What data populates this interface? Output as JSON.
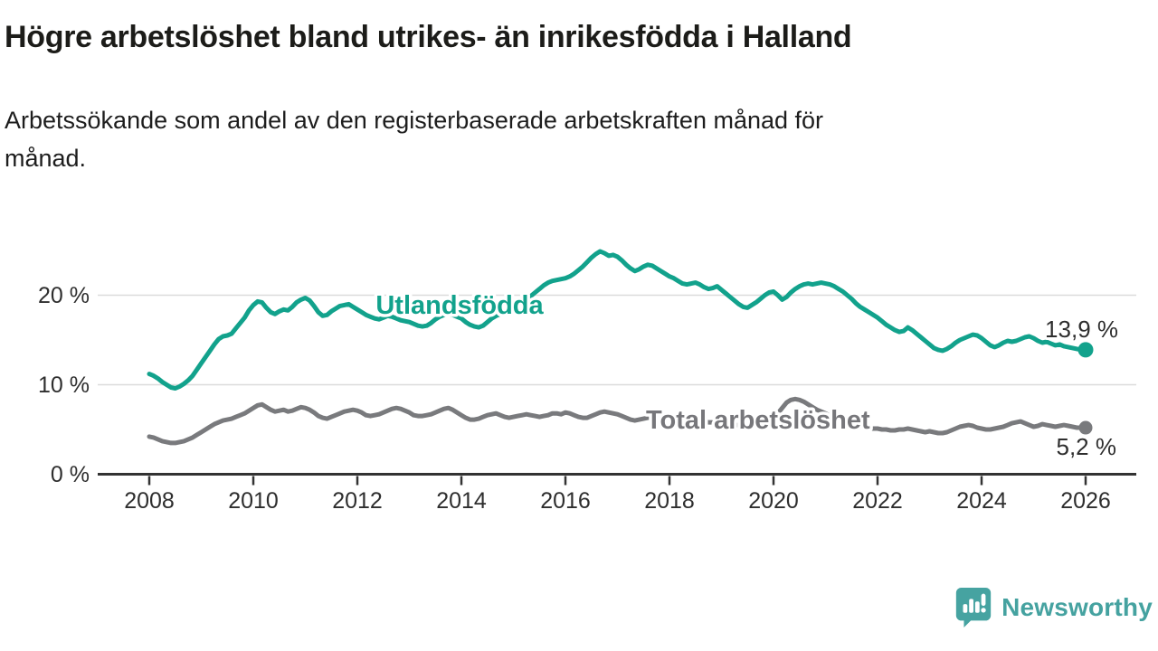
{
  "branding": {
    "name": "Newsworthy",
    "icon": "newsworthy-speech-bubble-chart-icon",
    "color": "#46a3a1"
  },
  "chart_data": {
    "type": "line",
    "title": "Högre arbetslöshet bland utrikes- än inrikesfödda i Halland",
    "subtitle": "Arbetssökande som andel av den registerbaserade arbetskraften månad för\nmånad.",
    "unit": "%",
    "x_range": [
      2008,
      2026
    ],
    "x_step_months": 1,
    "ylim": [
      0,
      26.5
    ],
    "grid": "horizontal",
    "grid_values": [
      10,
      20
    ],
    "x_ticks": [
      2008,
      2010,
      2012,
      2014,
      2016,
      2018,
      2020,
      2022,
      2024,
      2026
    ],
    "y_ticks": [
      {
        "value": 20,
        "label": "20 %"
      },
      {
        "value": 10,
        "label": "10 %"
      },
      {
        "value": 0,
        "label": "0 %"
      }
    ],
    "series": [
      {
        "name": "Utlandsfödda",
        "color": "#12a28c",
        "end_value": 13.9,
        "end_label": "13,9 %",
        "start_year": 2008,
        "values": [
          11.2,
          11.0,
          10.7,
          10.3,
          10.0,
          9.7,
          9.6,
          9.8,
          10.1,
          10.5,
          11.0,
          11.7,
          12.4,
          13.1,
          13.8,
          14.5,
          15.1,
          15.4,
          15.5,
          15.7,
          16.3,
          16.9,
          17.5,
          18.3,
          18.9,
          19.3,
          19.2,
          18.6,
          18.1,
          17.9,
          18.2,
          18.4,
          18.3,
          18.7,
          19.2,
          19.5,
          19.7,
          19.4,
          18.8,
          18.1,
          17.7,
          17.8,
          18.2,
          18.5,
          18.8,
          18.9,
          19.0,
          18.7,
          18.4,
          18.1,
          17.8,
          17.6,
          17.4,
          17.3,
          17.5,
          17.7,
          17.6,
          17.4,
          17.2,
          17.1,
          17.0,
          16.8,
          16.6,
          16.5,
          16.6,
          16.9,
          17.3,
          17.6,
          17.8,
          17.9,
          17.8,
          17.6,
          17.4,
          17.0,
          16.7,
          16.5,
          16.4,
          16.6,
          17.0,
          17.4,
          17.7,
          17.9,
          18.1,
          18.4,
          18.7,
          19.0,
          19.3,
          19.6,
          19.9,
          20.3,
          20.7,
          21.1,
          21.4,
          21.6,
          21.7,
          21.8,
          21.9,
          22.1,
          22.4,
          22.8,
          23.2,
          23.7,
          24.2,
          24.6,
          24.9,
          24.7,
          24.4,
          24.5,
          24.3,
          23.9,
          23.4,
          23.0,
          22.7,
          22.9,
          23.2,
          23.4,
          23.3,
          23.0,
          22.7,
          22.4,
          22.1,
          21.9,
          21.6,
          21.3,
          21.2,
          21.3,
          21.4,
          21.2,
          20.9,
          20.7,
          20.8,
          21.0,
          20.6,
          20.2,
          19.8,
          19.4,
          19.0,
          18.7,
          18.6,
          18.9,
          19.2,
          19.6,
          20.0,
          20.3,
          20.4,
          20.0,
          19.5,
          19.8,
          20.3,
          20.7,
          21.0,
          21.2,
          21.3,
          21.2,
          21.3,
          21.4,
          21.3,
          21.2,
          21.0,
          20.7,
          20.4,
          20.0,
          19.6,
          19.1,
          18.7,
          18.4,
          18.1,
          17.8,
          17.5,
          17.1,
          16.7,
          16.4,
          16.1,
          15.9,
          16.0,
          16.4,
          16.1,
          15.7,
          15.3,
          14.9,
          14.5,
          14.1,
          13.9,
          13.8,
          14.0,
          14.3,
          14.7,
          15.0,
          15.2,
          15.4,
          15.6,
          15.5,
          15.2,
          14.8,
          14.4,
          14.2,
          14.4,
          14.7,
          14.9,
          14.8,
          14.9,
          15.1,
          15.3,
          15.4,
          15.2,
          14.9,
          14.7,
          14.8,
          14.6,
          14.4,
          14.5,
          14.3,
          14.2,
          14.1,
          14.0,
          13.9,
          13.9
        ]
      },
      {
        "name": "Total arbetslöshet",
        "color": "#797a7d",
        "end_value": 5.2,
        "end_label": "5,2 %",
        "start_year": 2008,
        "values": [
          4.2,
          4.1,
          3.9,
          3.7,
          3.6,
          3.5,
          3.5,
          3.6,
          3.7,
          3.9,
          4.1,
          4.4,
          4.7,
          5.0,
          5.3,
          5.6,
          5.8,
          6.0,
          6.1,
          6.2,
          6.4,
          6.6,
          6.8,
          7.1,
          7.4,
          7.7,
          7.8,
          7.5,
          7.2,
          7.0,
          7.1,
          7.2,
          7.0,
          7.1,
          7.3,
          7.5,
          7.4,
          7.2,
          6.9,
          6.5,
          6.3,
          6.2,
          6.4,
          6.6,
          6.8,
          7.0,
          7.1,
          7.2,
          7.1,
          6.9,
          6.6,
          6.5,
          6.6,
          6.7,
          6.9,
          7.1,
          7.3,
          7.4,
          7.3,
          7.1,
          6.9,
          6.6,
          6.5,
          6.5,
          6.6,
          6.7,
          6.9,
          7.1,
          7.3,
          7.4,
          7.2,
          6.9,
          6.6,
          6.3,
          6.1,
          6.1,
          6.2,
          6.4,
          6.6,
          6.7,
          6.8,
          6.6,
          6.4,
          6.3,
          6.4,
          6.5,
          6.6,
          6.7,
          6.6,
          6.5,
          6.4,
          6.5,
          6.6,
          6.8,
          6.8,
          6.7,
          6.9,
          6.8,
          6.6,
          6.4,
          6.3,
          6.3,
          6.5,
          6.7,
          6.9,
          7.0,
          6.9,
          6.8,
          6.7,
          6.5,
          6.3,
          6.1,
          6.0,
          6.1,
          6.2,
          6.3,
          6.4,
          6.5,
          6.5,
          6.4,
          6.2,
          6.0,
          5.9,
          5.8,
          5.7,
          5.7,
          5.8,
          5.9,
          5.9,
          5.8,
          5.8,
          5.9,
          5.8,
          5.7,
          5.6,
          5.5,
          5.5,
          5.6,
          5.7,
          5.8,
          5.8,
          5.9,
          6.0,
          6.1,
          6.4,
          6.8,
          7.4,
          8.0,
          8.3,
          8.4,
          8.3,
          8.1,
          7.8,
          7.5,
          7.2,
          7.0,
          6.8,
          6.5,
          6.2,
          6.0,
          5.8,
          5.6,
          5.5,
          5.4,
          5.3,
          5.2,
          5.1,
          5.1,
          5.1,
          5.0,
          5.0,
          4.9,
          4.9,
          5.0,
          5.0,
          5.1,
          5.0,
          4.9,
          4.8,
          4.7,
          4.8,
          4.7,
          4.6,
          4.6,
          4.7,
          4.9,
          5.1,
          5.3,
          5.4,
          5.5,
          5.4,
          5.2,
          5.1,
          5.0,
          5.0,
          5.1,
          5.2,
          5.3,
          5.5,
          5.7,
          5.8,
          5.9,
          5.7,
          5.5,
          5.3,
          5.4,
          5.6,
          5.5,
          5.4,
          5.3,
          5.4,
          5.5,
          5.4,
          5.3,
          5.2,
          5.2,
          5.2
        ]
      }
    ]
  }
}
